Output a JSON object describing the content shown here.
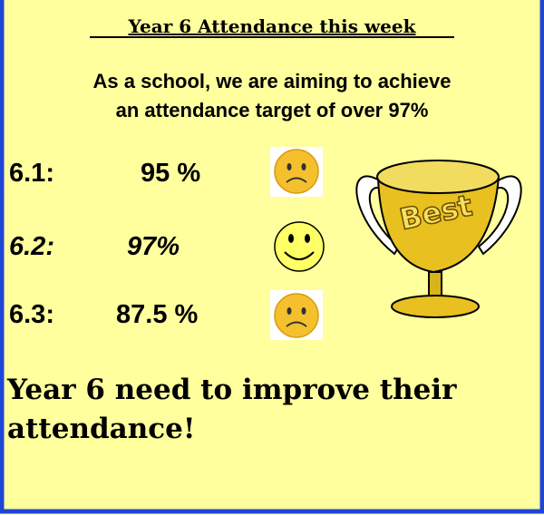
{
  "title": "Year 6 Attendance this week",
  "intro": [
    "As a school, we are aiming to achieve",
    "an attendance target of over 97%"
  ],
  "classes": [
    {
      "label": "6.1:",
      "attendance": "95 %"
    },
    {
      "label": "6.2:",
      "attendance": "97%"
    },
    {
      "label": "6.3:",
      "attendance": "87.5 %"
    }
  ],
  "trophy": "Best",
  "message": [
    "Year 6 need to improve their",
    "attendance!"
  ]
}
